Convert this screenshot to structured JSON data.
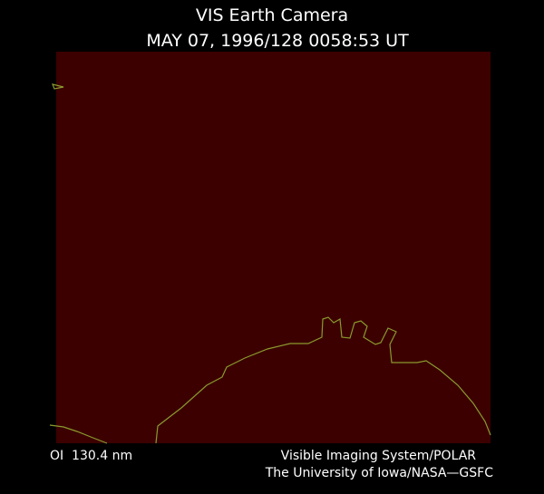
{
  "header": {
    "title": "VIS Earth Camera",
    "timestamp": "MAY 07, 1996/128 0058:53 UT"
  },
  "footer": {
    "filter": "OI  130.4 nm",
    "instrument": "Visible Imaging System/POLAR",
    "institution": "The University of Iowa/NASA—GSFC"
  }
}
